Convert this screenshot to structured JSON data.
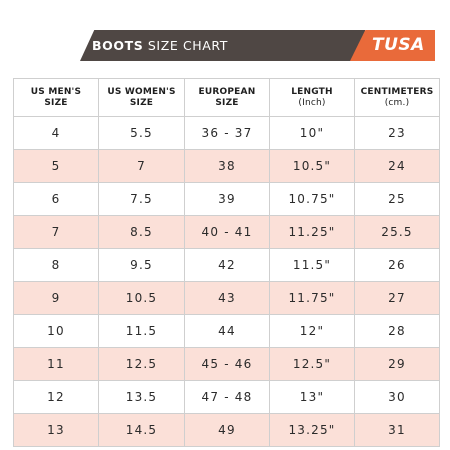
{
  "header": {
    "title_bold": "BOOTS",
    "title_light": "SIZE CHART",
    "brand": "TUSA"
  },
  "colors": {
    "banner_dark": "#4f4744",
    "banner_accent": "#e96a3a",
    "row_shade": "#fbe0d8",
    "grid_line": "#cfcfcf"
  },
  "table": {
    "columns": [
      {
        "line1": "US MEN'S",
        "line2": "SIZE"
      },
      {
        "line1": "US WOMEN'S",
        "line2": "SIZE"
      },
      {
        "line1": "EUROPEAN",
        "line2": "SIZE"
      },
      {
        "line1": "LENGTH",
        "line2": "(Inch)"
      },
      {
        "line1": "CENTIMETERS",
        "line2": "(cm.)"
      }
    ],
    "rows": [
      [
        "4",
        "5.5",
        "36 - 37",
        "10\"",
        "23"
      ],
      [
        "5",
        "7",
        "38",
        "10.5\"",
        "24"
      ],
      [
        "6",
        "7.5",
        "39",
        "10.75\"",
        "25"
      ],
      [
        "7",
        "8.5",
        "40 - 41",
        "11.25\"",
        "25.5"
      ],
      [
        "8",
        "9.5",
        "42",
        "11.5\"",
        "26"
      ],
      [
        "9",
        "10.5",
        "43",
        "11.75\"",
        "27"
      ],
      [
        "10",
        "11.5",
        "44",
        "12\"",
        "28"
      ],
      [
        "11",
        "12.5",
        "45 - 46",
        "12.5\"",
        "29"
      ],
      [
        "12",
        "13.5",
        "47 - 48",
        "13\"",
        "30"
      ],
      [
        "13",
        "14.5",
        "49",
        "13.25\"",
        "31"
      ]
    ]
  }
}
